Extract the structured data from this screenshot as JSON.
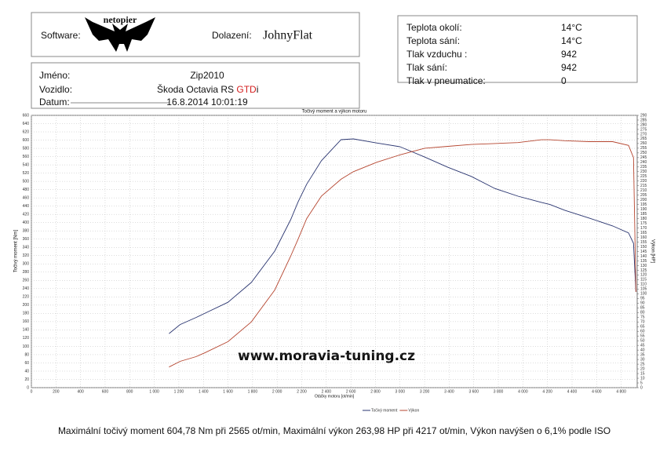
{
  "header": {
    "software_label": "Software:",
    "software": "netopier",
    "operator_label": "Dolazení:",
    "operator": "JohnyFlat",
    "conditions": [
      [
        "Teplota okolí:",
        "14°C"
      ],
      [
        "Teplota sání:",
        "14°C"
      ],
      [
        "Tlak vzduchu :",
        "942"
      ],
      [
        "Tlak sání:",
        "942"
      ],
      [
        "Tlak v pneumatice:",
        "0"
      ]
    ],
    "name_label": "Jméno:",
    "name": "Zip2010",
    "vehicle_label": "Vozidlo:",
    "vehicle": "Škoda Octavia RS ",
    "vehicle_highlight": "GTD",
    "vehicle_suffix": "i",
    "date_label": "Datum:",
    "date": "16.8.2014 10:01:19"
  },
  "chart_data": {
    "type": "line",
    "title": "Točivý moment a výkon motoru",
    "x_label": "Otáčky motoru [ot/min]",
    "y_label": "Točivý moment [Nm]",
    "y2_label": "Výkon [HP]",
    "watermark": "www.moravia-tuning.cz",
    "grid": true,
    "legend": "bottom",
    "x": [
      1120,
      1210,
      1340,
      1410,
      1600,
      1790,
      1980,
      2110,
      2170,
      2240,
      2360,
      2520,
      2620,
      2810,
      3000,
      3200,
      3390,
      3580,
      3770,
      3960,
      4150,
      4220,
      4340,
      4540,
      4730,
      4860,
      4900,
      4920
    ],
    "series": [
      {
        "name": "Točivý moment",
        "color": "#2a3570",
        "axis": "y",
        "values": [
          131,
          153,
          170,
          180,
          207,
          255,
          331,
          407,
          450,
          493,
          550,
          601,
          603,
          593,
          584,
          559,
          534,
          512,
          483,
          464,
          449,
          444,
          430,
          411,
          392,
          375,
          350,
          232
        ]
      },
      {
        "name": "Výkon",
        "color": "#b5452f",
        "axis": "y2",
        "values": [
          22,
          28,
          33,
          37,
          49,
          70,
          104,
          140,
          158,
          180,
          204,
          222,
          230,
          240,
          248,
          255,
          257,
          259,
          260,
          261,
          264,
          264,
          263,
          262,
          262,
          258,
          245,
          102
        ]
      }
    ],
    "xlim": [
      0,
      4930
    ],
    "xticks": [
      0,
      200,
      400,
      600,
      800,
      {
        "value": 1000,
        "label": "1 000"
      },
      {
        "value": 1200,
        "label": "1 200"
      },
      {
        "value": 1400,
        "label": "1 400"
      },
      {
        "value": 1600,
        "label": "1 600"
      },
      {
        "value": 1800,
        "label": "1 800"
      },
      {
        "value": 2000,
        "label": "2 000"
      },
      {
        "value": 2200,
        "label": "2 200"
      },
      {
        "value": 2400,
        "label": "2 400"
      },
      {
        "value": 2600,
        "label": "2 600"
      },
      {
        "value": 2800,
        "label": "2 800"
      },
      {
        "value": 3000,
        "label": "3 000"
      },
      {
        "value": 3200,
        "label": "3 200"
      },
      {
        "value": 3400,
        "label": "3 400"
      },
      {
        "value": 3600,
        "label": "3 600"
      },
      {
        "value": 3800,
        "label": "3 800"
      },
      {
        "value": 4000,
        "label": "4 000"
      },
      {
        "value": 4200,
        "label": "4 200"
      },
      {
        "value": 4400,
        "label": "4 400"
      },
      {
        "value": 4600,
        "label": "4 600"
      },
      {
        "value": 4800,
        "label": "4 800"
      }
    ],
    "ylim": [
      0,
      660
    ],
    "yticks": [
      0,
      20,
      40,
      60,
      80,
      100,
      120,
      140,
      160,
      180,
      200,
      220,
      240,
      260,
      280,
      300,
      320,
      340,
      360,
      380,
      400,
      420,
      440,
      460,
      480,
      500,
      520,
      540,
      560,
      580,
      600,
      620,
      640,
      660
    ],
    "y2lim": [
      0,
      290
    ],
    "y2ticks": [
      0,
      5,
      10,
      15,
      20,
      25,
      30,
      35,
      40,
      45,
      50,
      55,
      60,
      65,
      70,
      75,
      80,
      85,
      90,
      95,
      100,
      105,
      110,
      115,
      120,
      125,
      130,
      135,
      140,
      145,
      150,
      155,
      160,
      165,
      170,
      175,
      180,
      185,
      190,
      195,
      200,
      205,
      210,
      215,
      220,
      225,
      230,
      235,
      240,
      245,
      250,
      255,
      260,
      265,
      270,
      275,
      280,
      285,
      290
    ]
  },
  "footer": "Maximální točivý moment 604,78 Nm při 2565 ot/min, Maximální výkon 263,98 HP při 4217 ot/min, Výkon navýšen o 6,1% podle ISO"
}
